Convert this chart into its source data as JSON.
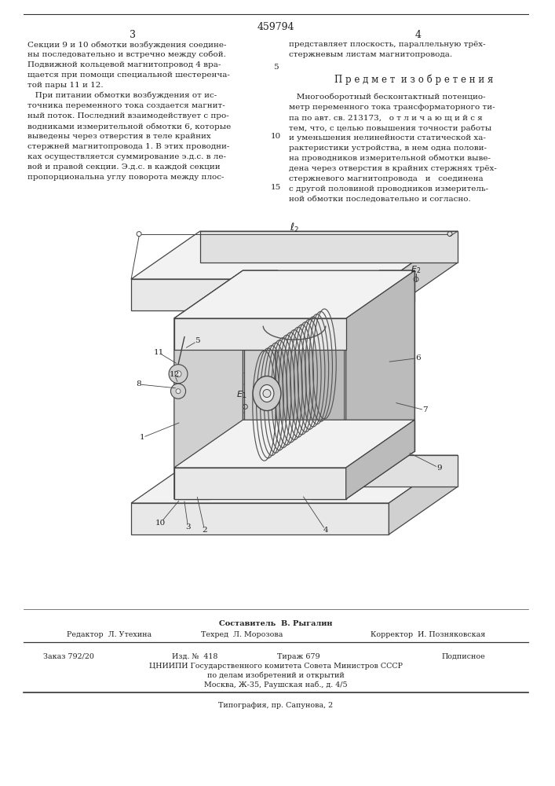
{
  "patent_number": "459794",
  "page_left": "3",
  "page_right": "4",
  "left_col_text": [
    "Секции 9 и 10 обмотки возбуждения соедине-",
    "ны последовательно и встречно между собой.",
    "Подвижной кольцевой магнитопровод 4 вра-",
    "щается при помощи специальной шестеренча-",
    "той пары 11 и 12.",
    "   При питании обмотки возбуждения от ис-",
    "точника переменного тока создается магнит-",
    "ный поток. Последний взаимодействует с про-",
    "водниками измерительной обмотки 6, которые",
    "выведены через отверстия в теле крайних",
    "стержней магнитопровода 1. В этих проводни-",
    "ках осуществляется суммирование э.д.с. в ле-",
    "вой и правой секции. Э.д.с. в каждой секции",
    "пропорциональна углу поворота между плос-"
  ],
  "right_col_text_top": [
    "представляет плоскость, параллельную трёх-",
    "стержневым листам магнитопровода."
  ],
  "subject_title": "П р е д м е т  и з о б р е т е н и я",
  "subject_number": "5",
  "right_col_claim": [
    "   Многооборотный бесконтактный потенцио-",
    "метр переменного тока трансформаторного ти-",
    "па по авт. св. 213173,   о т л и ч а ю щ и й с я",
    "тем, что, с целью повышения точности работы",
    "и уменьшения нелинейности статической ха-",
    "рактеристики устройства, в нем одна полови-",
    "на проводников измерительной обмотки выве-",
    "дена через отверстия в крайних стержнях трёх-",
    "стержневого магнитопровода   и   соединена",
    "с другой половиной проводников измеритель-",
    "ной обмотки последовательно и согласно."
  ],
  "line_num_5": "5",
  "line_num_10": "10",
  "line_num_15": "15",
  "footer_compiler_label": "Составитель  В. Рыгалин",
  "footer_line1_left": "Редактор  Л. Утехина",
  "footer_line1_mid": "Техред  Л. Морозова",
  "footer_line1_right": "Корректор  И. Позняковская",
  "footer_line2_left": "Заказ 792/20",
  "footer_line2_mid_1": "Изд. №  418",
  "footer_line2_mid_2": "Тираж 679",
  "footer_line2_right": "Подписное",
  "footer_line3": "ЦНИИПИ Государственного комитета Совета Министров СССР",
  "footer_line4": "по делам изобретений и открытий",
  "footer_line5": "Москва, Ж-35, Раушская наб., д. 4/5",
  "footer_line6": "Типография, пр. Сапунова, 2",
  "bg_color": "#ffffff",
  "text_color": "#222222",
  "line_color": "#333333",
  "draw_line_color": "#444444"
}
